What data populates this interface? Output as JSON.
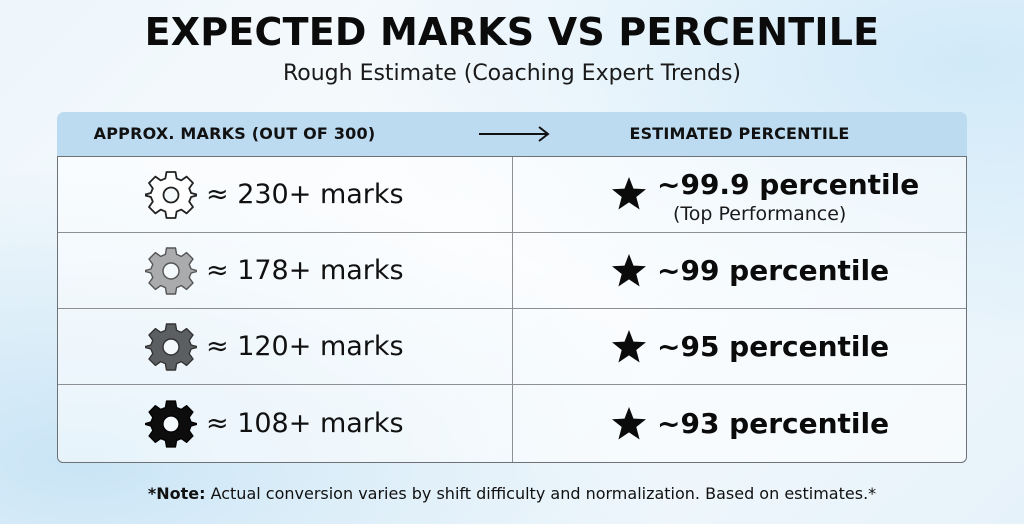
{
  "header": {
    "title": "EXPECTED MARKS VS PERCENTILE",
    "subtitle": "Rough Estimate (Coaching Expert Trends)"
  },
  "table": {
    "columns": {
      "left": "APPROX. MARKS (OUT OF 300)",
      "right": "ESTIMATED PERCENTILE"
    },
    "arrow_icon": "long-right-arrow-icon",
    "rows": [
      {
        "gear_icon": "gear-outline-icon",
        "gear_color": "#ffffff",
        "marks": "≈ 230+ marks",
        "percentile": "~99.9 percentile",
        "note": "(Top Performance)"
      },
      {
        "gear_icon": "gear-light-icon",
        "gear_color": "#a9abad",
        "marks": "≈ 178+ marks",
        "percentile": "~99 percentile"
      },
      {
        "gear_icon": "gear-medium-icon",
        "gear_color": "#5c5f62",
        "marks": "≈ 120+ marks",
        "percentile": "~95 percentile"
      },
      {
        "gear_icon": "gear-dark-icon",
        "gear_color": "#0d0d0d",
        "marks": "≈ 108+ marks",
        "percentile": "~93 percentile"
      }
    ],
    "star_icon": "star-icon",
    "header_color": "#bcdaf0"
  },
  "footer": {
    "note_label": "*Note:",
    "note_text": " Actual conversion varies by shift difficulty and normalization. Based on estimates.*"
  }
}
